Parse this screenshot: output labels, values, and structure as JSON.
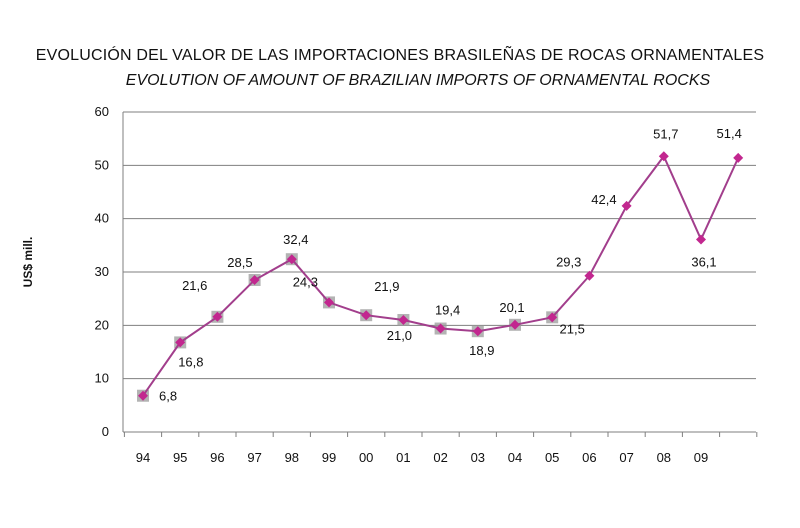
{
  "chart_data": {
    "type": "line",
    "title": "EVOLUCIÓN  DEL VALOR DE LAS IMPORTACIONES BRASILEÑAS DE ROCAS ORNAMENTALES",
    "subtitle": "EVOLUTION OF AMOUNT OF BRAZILIAN IMPORTS OF ORNAMENTAL ROCKS",
    "xlabel": "",
    "ylabel": "US$ mill.",
    "ylim": [
      0,
      60
    ],
    "yticks": [
      "0",
      "10",
      "20",
      "30",
      "40",
      "50",
      "60"
    ],
    "categories": [
      "94",
      "95",
      "96",
      "97",
      "98",
      "99",
      "00",
      "01",
      "02",
      "03",
      "04",
      "05",
      "06",
      "07",
      "08",
      "09",
      ""
    ],
    "values": [
      6.8,
      16.8,
      21.6,
      28.5,
      32.4,
      24.3,
      21.9,
      21.0,
      19.4,
      18.9,
      20.1,
      21.5,
      29.3,
      42.4,
      51.7,
      36.1,
      51.4
    ],
    "data_labels": [
      "6,8",
      "16,8",
      "21,6",
      "28,5",
      "32,4",
      "24,3",
      "21,9",
      "21,0",
      "19,4",
      "18,9",
      "20,1",
      "21,5",
      "29,3",
      "42,4",
      "51,7",
      "36,1",
      "51,4"
    ],
    "grid": true,
    "colors": {
      "line": "#a23e8c",
      "marker": "#c2278f",
      "shadow": "#9a9a9a",
      "grid": "#7f7f7f"
    }
  }
}
